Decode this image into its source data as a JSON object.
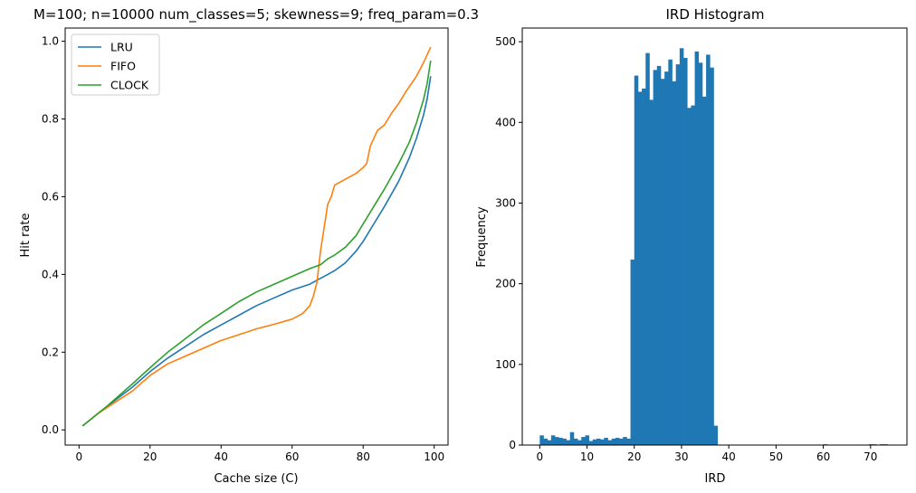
{
  "chart_data": [
    {
      "type": "line",
      "title": "M=100; n=10000 num_classes=5; skewness=9; freq_param=0.3",
      "xlabel": "Cache size (C)",
      "ylabel": "Hit rate",
      "xlim": [
        -3.9,
        103.9
      ],
      "ylim": [
        -0.039,
        1.034
      ],
      "xticks": [
        0,
        20,
        40,
        60,
        80,
        100
      ],
      "yticks": [
        0.0,
        0.2,
        0.4,
        0.6,
        0.8,
        1.0
      ],
      "xtick_labels": [
        "0",
        "20",
        "40",
        "60",
        "80",
        "100"
      ],
      "ytick_labels": [
        "0.0",
        "0.2",
        "0.4",
        "0.6",
        "0.8",
        "1.0"
      ],
      "grid": false,
      "legend": "top-left",
      "series": [
        {
          "name": "LRU",
          "color": "#1f77b4",
          "x": [
            1,
            3,
            5,
            8,
            10,
            15,
            20,
            25,
            30,
            35,
            40,
            45,
            50,
            55,
            60,
            65,
            68,
            70,
            72,
            75,
            78,
            80,
            83,
            86,
            90,
            93,
            95,
            97,
            98,
            99
          ],
          "y": [
            0.01,
            0.025,
            0.04,
            0.06,
            0.075,
            0.11,
            0.15,
            0.185,
            0.215,
            0.245,
            0.27,
            0.295,
            0.32,
            0.34,
            0.36,
            0.375,
            0.39,
            0.4,
            0.41,
            0.43,
            0.46,
            0.485,
            0.53,
            0.575,
            0.64,
            0.7,
            0.75,
            0.81,
            0.85,
            0.91
          ]
        },
        {
          "name": "FIFO",
          "color": "#ff7f0e",
          "x": [
            1,
            3,
            5,
            8,
            10,
            15,
            20,
            25,
            30,
            35,
            40,
            45,
            50,
            55,
            60,
            63,
            65,
            66,
            67,
            68,
            69,
            70,
            71,
            72,
            75,
            78,
            80,
            81,
            82,
            84,
            86,
            88,
            90,
            92,
            95,
            97,
            99
          ],
          "y": [
            0.01,
            0.025,
            0.04,
            0.058,
            0.07,
            0.1,
            0.14,
            0.17,
            0.19,
            0.21,
            0.23,
            0.245,
            0.26,
            0.272,
            0.285,
            0.3,
            0.32,
            0.345,
            0.38,
            0.46,
            0.52,
            0.58,
            0.6,
            0.63,
            0.645,
            0.66,
            0.675,
            0.685,
            0.73,
            0.77,
            0.785,
            0.815,
            0.84,
            0.87,
            0.91,
            0.945,
            0.985
          ]
        },
        {
          "name": "CLOCK",
          "color": "#2ca02c",
          "x": [
            1,
            3,
            5,
            8,
            10,
            15,
            20,
            25,
            30,
            35,
            40,
            45,
            50,
            55,
            60,
            65,
            68,
            70,
            72,
            75,
            78,
            80,
            83,
            86,
            90,
            93,
            95,
            97,
            98,
            99
          ],
          "y": [
            0.01,
            0.025,
            0.04,
            0.062,
            0.078,
            0.118,
            0.16,
            0.2,
            0.235,
            0.27,
            0.3,
            0.33,
            0.355,
            0.375,
            0.395,
            0.415,
            0.425,
            0.44,
            0.45,
            0.47,
            0.5,
            0.53,
            0.575,
            0.62,
            0.685,
            0.74,
            0.79,
            0.85,
            0.89,
            0.95
          ]
        }
      ]
    },
    {
      "type": "bar",
      "title": "IRD Histogram",
      "xlabel": "IRD",
      "ylabel": "Frequency",
      "xlim": [
        -3.7,
        77.7
      ],
      "ylim": [
        0,
        517
      ],
      "xticks": [
        0,
        10,
        20,
        30,
        40,
        50,
        60,
        70
      ],
      "yticks": [
        0,
        100,
        200,
        300,
        400,
        500
      ],
      "xtick_labels": [
        "0",
        "10",
        "20",
        "30",
        "40",
        "50",
        "60",
        "70"
      ],
      "ytick_labels": [
        "0",
        "100",
        "200",
        "300",
        "400",
        "500"
      ],
      "grid": false,
      "color": "#1f77b4",
      "bin_start": 0,
      "bin_width": 0.8,
      "values": [
        12,
        8,
        6,
        12,
        10,
        9,
        8,
        6,
        16,
        8,
        6,
        10,
        12,
        5,
        7,
        8,
        7,
        9,
        6,
        8,
        9,
        8,
        10,
        8,
        230,
        458,
        438,
        442,
        486,
        428,
        465,
        470,
        454,
        463,
        478,
        451,
        472,
        492,
        480,
        418,
        421,
        488,
        474,
        432,
        484,
        468,
        24,
        0,
        0,
        0,
        0,
        0,
        0,
        0,
        0,
        0,
        0,
        0,
        0,
        0,
        0,
        0,
        0,
        0,
        0,
        0,
        0,
        0,
        0,
        0,
        0,
        0,
        0,
        0,
        0,
        1,
        0,
        0,
        0,
        0,
        0,
        0,
        0,
        0,
        0,
        0,
        0,
        1,
        1,
        0,
        1,
        1,
        0,
        0
      ]
    }
  ]
}
